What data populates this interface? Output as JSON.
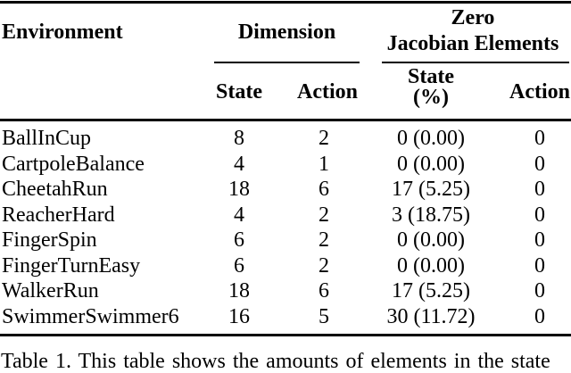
{
  "header": {
    "environment": "Environment",
    "dimension": "Dimension",
    "zero_jacobian_line1": "Zero",
    "zero_jacobian_line2": "Jacobian Elements",
    "sub": {
      "dimension_state": "State",
      "dimension_action": "Action",
      "zero_state_line1": "State",
      "zero_state_line2": "(%)",
      "zero_action": "Action"
    }
  },
  "rows": [
    {
      "environment": "BallInCup",
      "state_dim": "8",
      "action_dim": "2",
      "zero_state": "0 (0.00)",
      "zero_action": "0"
    },
    {
      "environment": "CartpoleBalance",
      "state_dim": "4",
      "action_dim": "1",
      "zero_state": "0 (0.00)",
      "zero_action": "0"
    },
    {
      "environment": "CheetahRun",
      "state_dim": "18",
      "action_dim": "6",
      "zero_state": "17 (5.25)",
      "zero_action": "0"
    },
    {
      "environment": "ReacherHard",
      "state_dim": "4",
      "action_dim": "2",
      "zero_state": "3 (18.75)",
      "zero_action": "0"
    },
    {
      "environment": "FingerSpin",
      "state_dim": "6",
      "action_dim": "2",
      "zero_state": "0 (0.00)",
      "zero_action": "0"
    },
    {
      "environment": "FingerTurnEasy",
      "state_dim": "6",
      "action_dim": "2",
      "zero_state": "0 (0.00)",
      "zero_action": "0"
    },
    {
      "environment": "WalkerRun",
      "state_dim": "18",
      "action_dim": "6",
      "zero_state": "17 (5.25)",
      "zero_action": "0"
    },
    {
      "environment": "SwimmerSwimmer6",
      "state_dim": "16",
      "action_dim": "5",
      "zero_state": "30 (11.72)",
      "zero_action": "0"
    }
  ],
  "caption": "Table 1. This table shows the amounts of elements in the state",
  "colors": {
    "text": "#000000",
    "background": "#ffffff",
    "rule": "#000000"
  }
}
